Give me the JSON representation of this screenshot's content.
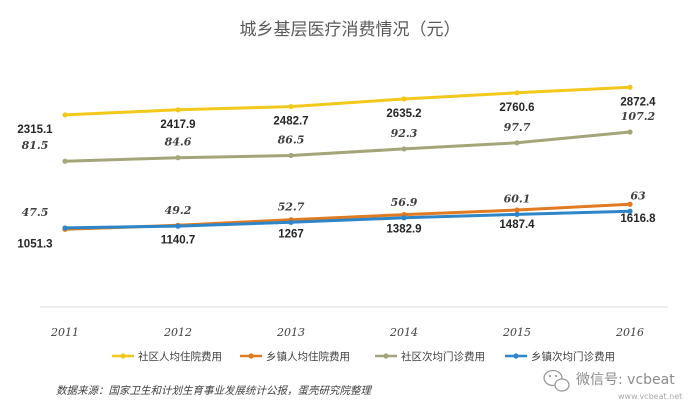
{
  "chart_data": {
    "type": "line",
    "title": "城乡基层医疗消费情况（元）",
    "categories": [
      "2011",
      "2012",
      "2013",
      "2014",
      "2015",
      "2016"
    ],
    "series": [
      {
        "name": "社区人均住院费用",
        "color": "#f2c81a",
        "values": [
          2315.1,
          2417.9,
          2482.7,
          2635.2,
          2760.6,
          2872.4
        ],
        "labels": [
          "2315.1",
          "2417.9",
          "2482.7",
          "2635.2",
          "2760.6",
          "2872.4"
        ],
        "label_position": "below"
      },
      {
        "name": "乡镇人均住院费用",
        "color": "#e07b22",
        "values": [
          1051.3,
          1140.7,
          1267,
          1382.9,
          1487.4,
          1616.8
        ],
        "labels": [
          "1051.3",
          "1140.7",
          "1267",
          "1382.9",
          "1487.4",
          "1616.8"
        ],
        "label_position": "below"
      },
      {
        "name": "社区次均门诊费用",
        "color": "#a5a57a",
        "values": [
          81.5,
          84.6,
          86.5,
          92.3,
          97.7,
          107.2
        ],
        "labels": [
          "81.5",
          "84.6",
          "86.5",
          "92.3",
          "97.7",
          "107.2"
        ],
        "label_position": "above"
      },
      {
        "name": "乡镇次均门诊费用",
        "color": "#2e86c8",
        "values": [
          47.5,
          49.2,
          52.7,
          56.9,
          60.1,
          63
        ],
        "labels": [
          "47.5",
          "49.2",
          "52.7",
          "56.9",
          "60.1",
          "63"
        ],
        "label_position": "above"
      }
    ],
    "grid": false,
    "legend_position": "bottom"
  },
  "footer": {
    "source": "数据来源：国家卫生和计划生育事业发展统计公报，蛋壳研究院整理"
  },
  "watermark": {
    "text": "微信号: vcbeat",
    "sub": "www.vcbeat.net",
    "icon": "wechat-icon"
  }
}
